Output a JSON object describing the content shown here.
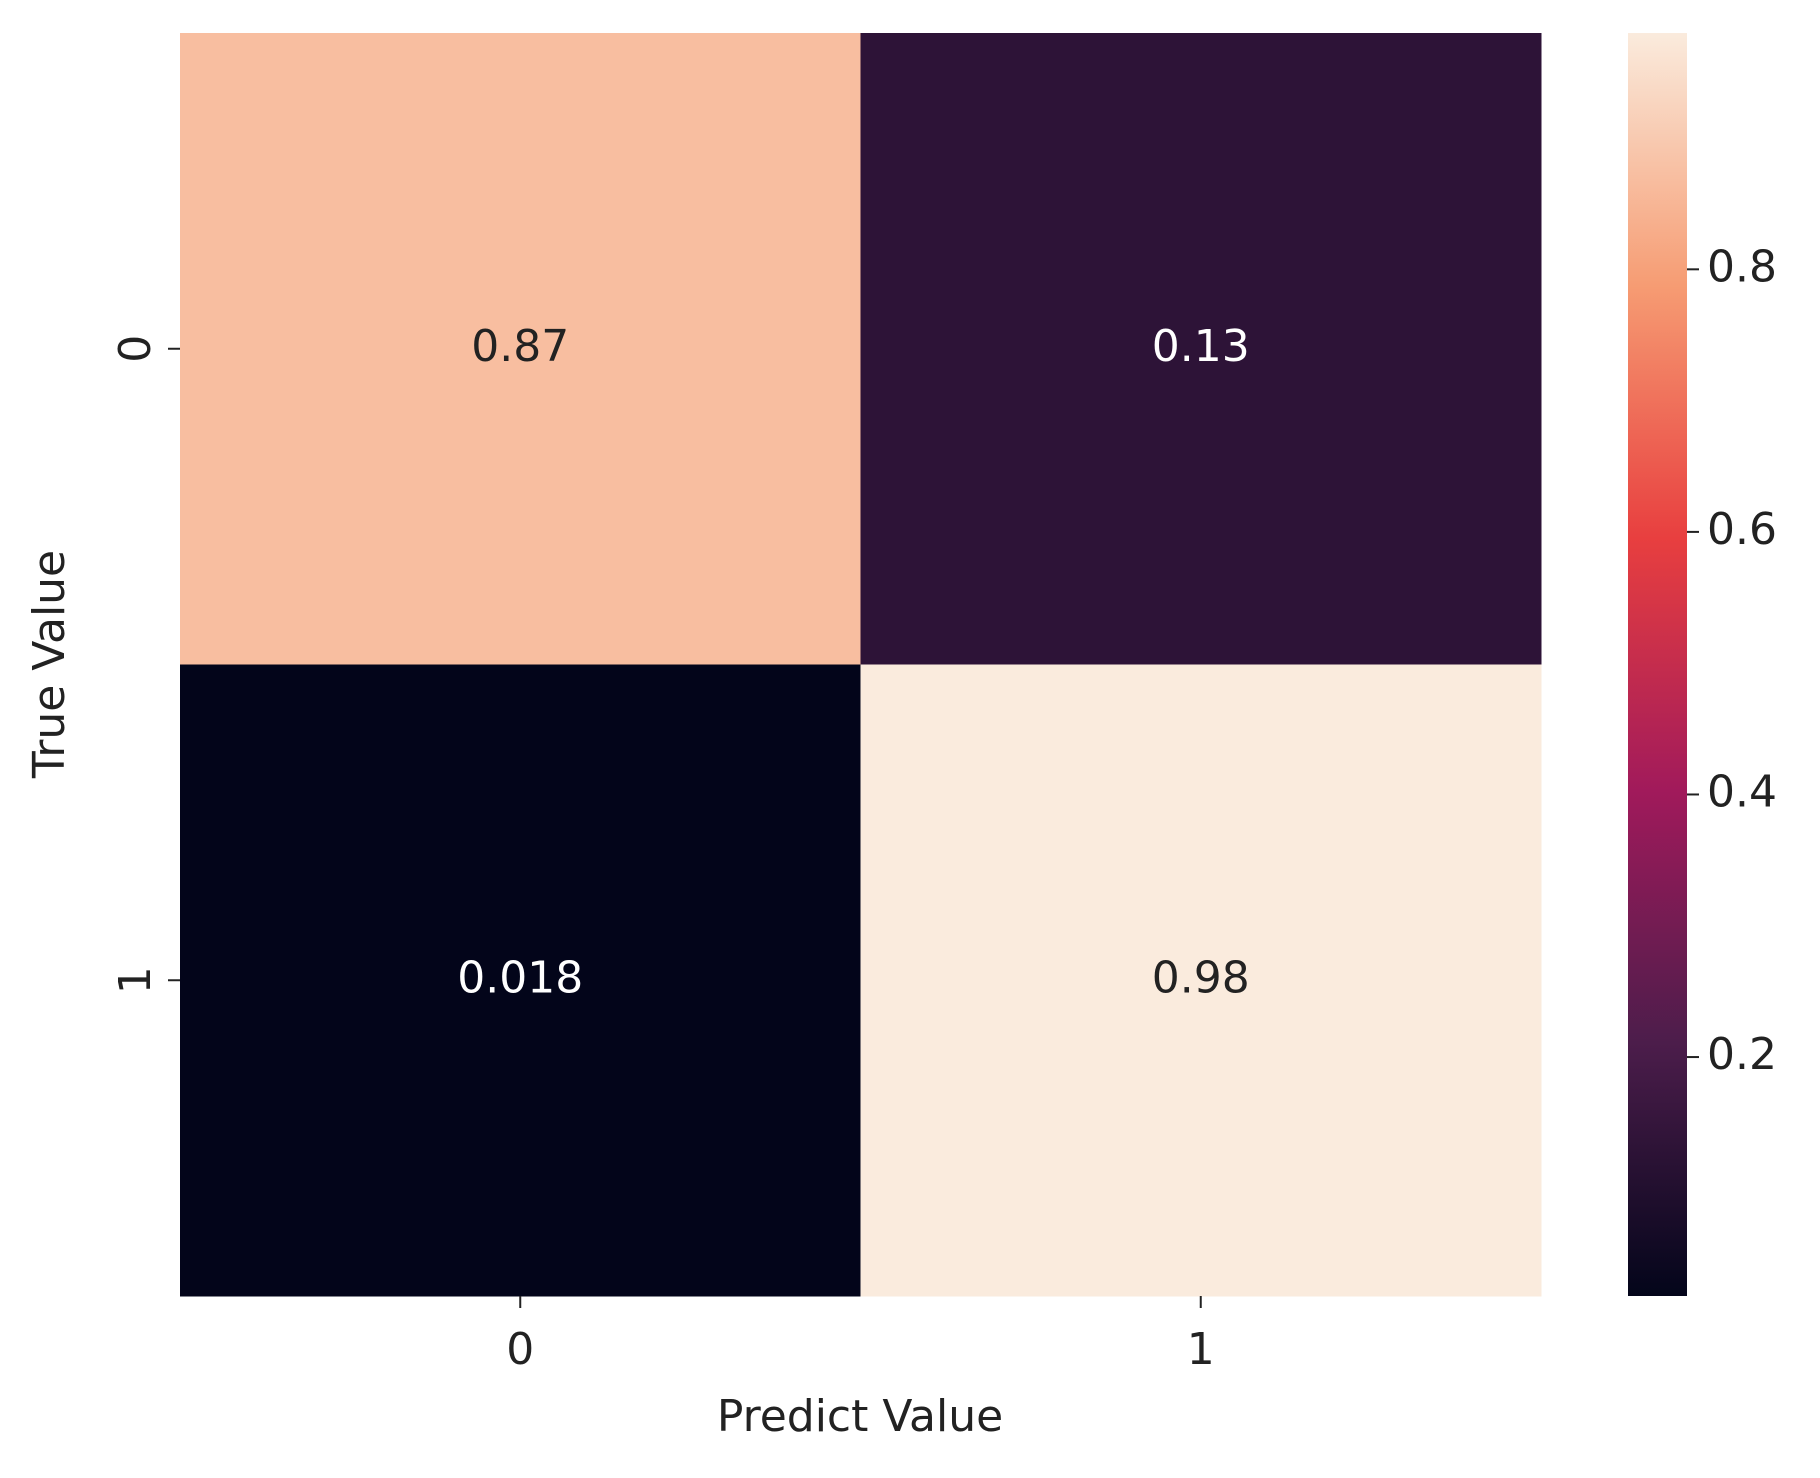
{
  "chart_data": {
    "type": "heatmap",
    "x_categories": [
      "0",
      "1"
    ],
    "y_categories": [
      "0",
      "1"
    ],
    "values": [
      [
        0.87,
        0.13
      ],
      [
        0.018,
        0.98
      ]
    ],
    "xlabel": "Predict Value",
    "ylabel": "True Value",
    "colorbar_lim": [
      0.018,
      0.98
    ],
    "colorbar_ticks": [
      0.2,
      0.4,
      0.6,
      0.8
    ],
    "colorscale": [
      "#03051a",
      "#4c1d4b",
      "#a11a5b",
      "#e83f3f",
      "#f69c73",
      "#faebdd"
    ]
  }
}
